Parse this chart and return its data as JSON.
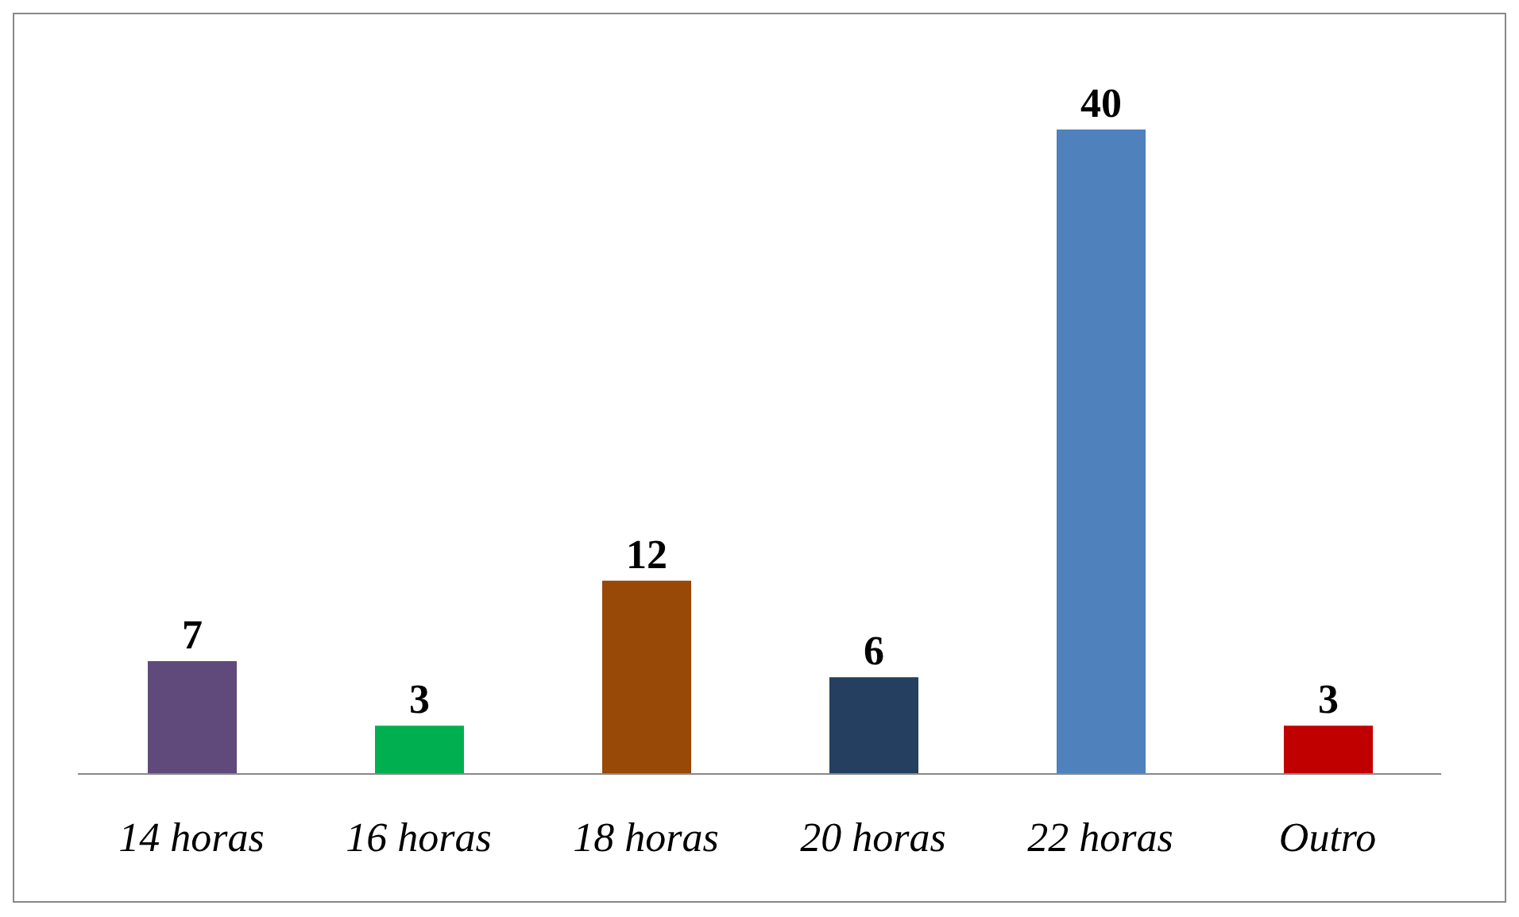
{
  "chart_data": {
    "type": "bar",
    "categories": [
      "14 horas",
      "16 horas",
      "18 horas",
      "20 horas",
      "22 horas",
      "Outro"
    ],
    "values": [
      7,
      3,
      12,
      6,
      40,
      3
    ],
    "colors": [
      "#604a7b",
      "#00b050",
      "#984807",
      "#243f60",
      "#4f81bd",
      "#c00000"
    ],
    "data_labels": true,
    "grid": false,
    "legend": false
  }
}
